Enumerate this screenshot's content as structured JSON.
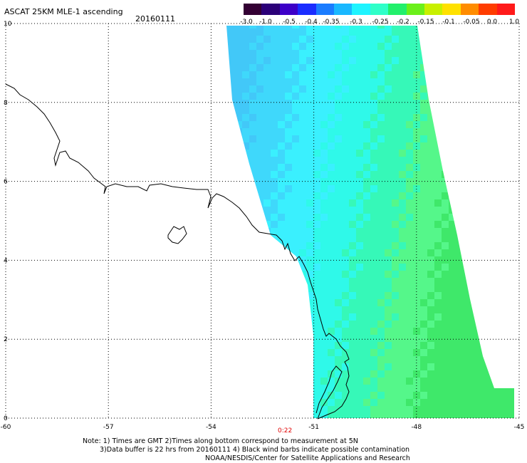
{
  "header": {
    "title": "ASCAT 25KM MLE-1 ascending",
    "date": "20160111"
  },
  "colorbar": {
    "labels": [
      "-3.0",
      "-1.0",
      "-0.5",
      "-0.4",
      "-0.35",
      "-0.3",
      "-0.25",
      "-0.2",
      "-0.15",
      "-0.1",
      "-0.05",
      "0.0",
      "1.0"
    ],
    "colors": [
      "#330033",
      "#2b0078",
      "#3d00c8",
      "#1a2cff",
      "#1a7cff",
      "#19b8ff",
      "#1ef4ff",
      "#2fffc8",
      "#22f06b",
      "#6bf01a",
      "#c8f000",
      "#ffe100",
      "#ff8c00",
      "#ff3c00",
      "#ff1a1a"
    ]
  },
  "map": {
    "lon_range": [
      -60,
      -45
    ],
    "lat_range": [
      0,
      10
    ],
    "x_ticks": [
      "-60",
      "-57",
      "-54",
      "-51",
      "-48",
      "-45"
    ],
    "y_ticks": [
      "0",
      "2",
      "4",
      "6",
      "8",
      "10"
    ],
    "time_label": "0:22",
    "swath_colors": [
      "#42c8f8",
      "#3fd8fb",
      "#3af0fe",
      "#2ff9e9",
      "#36f8b8",
      "#55f78a",
      "#3fe86a"
    ]
  },
  "notes": {
    "line1": "Note: 1) Times are GMT 2)Times along bottom correspond to measurement at 5N",
    "line2": "3)Data buffer is 22 hrs from 20160111 4) Black wind barbs indicate possible contamination",
    "line3": "NOAA/NESDIS/Center for Satellite Applications and Research"
  }
}
